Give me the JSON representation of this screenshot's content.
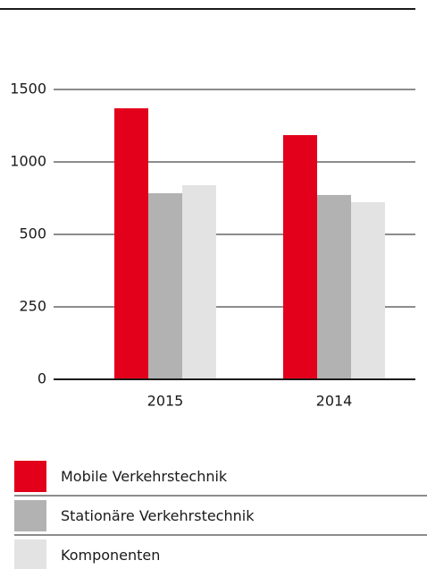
{
  "chart_data": {
    "type": "bar",
    "categories": [
      "2015",
      "2014"
    ],
    "series": [
      {
        "name": "Mobile Verkehrstechnik",
        "color": "#e2001a",
        "values": [
          1370,
          1185
        ]
      },
      {
        "name": "Stationäre Verkehrstechnik",
        "color": "#b2b2b2",
        "values": [
          784,
          772
        ]
      },
      {
        "name": "Komponenten",
        "color": "#e3e3e3",
        "values": [
          840,
          722
        ]
      }
    ],
    "ylim": [
      0,
      1500
    ],
    "yticks": [
      0,
      250,
      500,
      1000,
      1500
    ],
    "grid": true
  }
}
